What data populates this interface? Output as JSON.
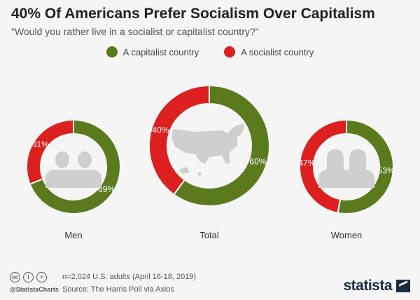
{
  "title": "40% Of Americans Prefer Socialism Over Capitalism",
  "subtitle": "\"Would you rather live in a socialist or capitalist country?\"",
  "legend": [
    {
      "label": "A capitalist country",
      "color": "#5b7a1e"
    },
    {
      "label": "A socialist country",
      "color": "#dc1f1f"
    }
  ],
  "chart_data": {
    "type": "pie",
    "variant": "donut",
    "unit": "%",
    "series_names": [
      "A capitalist country",
      "A socialist country"
    ],
    "colors": {
      "capitalist": "#5b7a1e",
      "socialist": "#dc1f1f"
    },
    "groups": [
      {
        "label": "Men",
        "icon": "men-silhouette-icon",
        "capitalist": 69,
        "socialist": 31
      },
      {
        "label": "Total",
        "icon": "usa-map-icon",
        "capitalist": 60,
        "socialist": 40
      },
      {
        "label": "Women",
        "icon": "women-silhouette-icon",
        "capitalist": 53,
        "socialist": 47
      }
    ]
  },
  "footer": {
    "note": "n=2,024 U.S. adults (April 16-18, 2019)",
    "source": "Source: The Harris Poll via Axios",
    "handle": "@StatistaCharts",
    "brand": "statista",
    "license_icons": [
      "cc",
      "i",
      "="
    ]
  }
}
